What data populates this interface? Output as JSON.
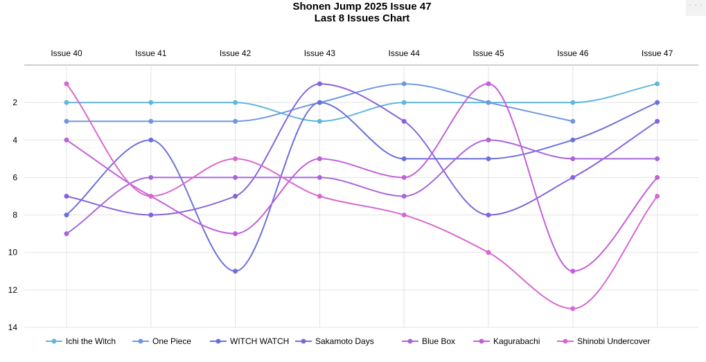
{
  "menu_label": "· · ·",
  "chart_data": {
    "type": "line",
    "title": "Shonen Jump 2025 Issue 47",
    "subtitle": "Last 8 Issues Chart",
    "categories": [
      "Issue 40",
      "Issue 41",
      "Issue 42",
      "Issue 43",
      "Issue 44",
      "Issue 45",
      "Issue 46",
      "Issue 47"
    ],
    "x_axis_position": "top",
    "y_axis": {
      "reversed": true,
      "ticks": [
        2,
        4,
        6,
        8,
        10,
        12,
        14
      ],
      "range": [
        0,
        14
      ]
    },
    "grid": true,
    "smooth": true,
    "legend_position": "bottom",
    "series": [
      {
        "name": "Ichi the Witch",
        "color": "#62b6dc",
        "values": [
          2,
          2,
          2,
          3,
          2,
          2,
          2,
          1
        ]
      },
      {
        "name": "One Piece",
        "color": "#6f97df",
        "values": [
          3,
          3,
          3,
          2,
          1,
          2,
          3,
          null
        ]
      },
      {
        "name": "WITCH WATCH",
        "color": "#6b6fdc",
        "values": [
          8,
          4,
          11,
          2,
          5,
          5,
          4,
          2
        ]
      },
      {
        "name": "Sakamoto Days",
        "color": "#8563de",
        "values": [
          7,
          8,
          7,
          1,
          3,
          8,
          6,
          3
        ]
      },
      {
        "name": "Blue Box",
        "color": "#a964de",
        "values": [
          9,
          6,
          6,
          6,
          7,
          4,
          5,
          5
        ]
      },
      {
        "name": "Kagurabachi",
        "color": "#c25ed8",
        "values": [
          4,
          7,
          9,
          5,
          6,
          1,
          11,
          6
        ]
      },
      {
        "name": "Shinobi Undercover",
        "color": "#d867cf",
        "values": [
          1,
          7,
          5,
          7,
          8,
          10,
          13,
          7
        ]
      }
    ]
  }
}
